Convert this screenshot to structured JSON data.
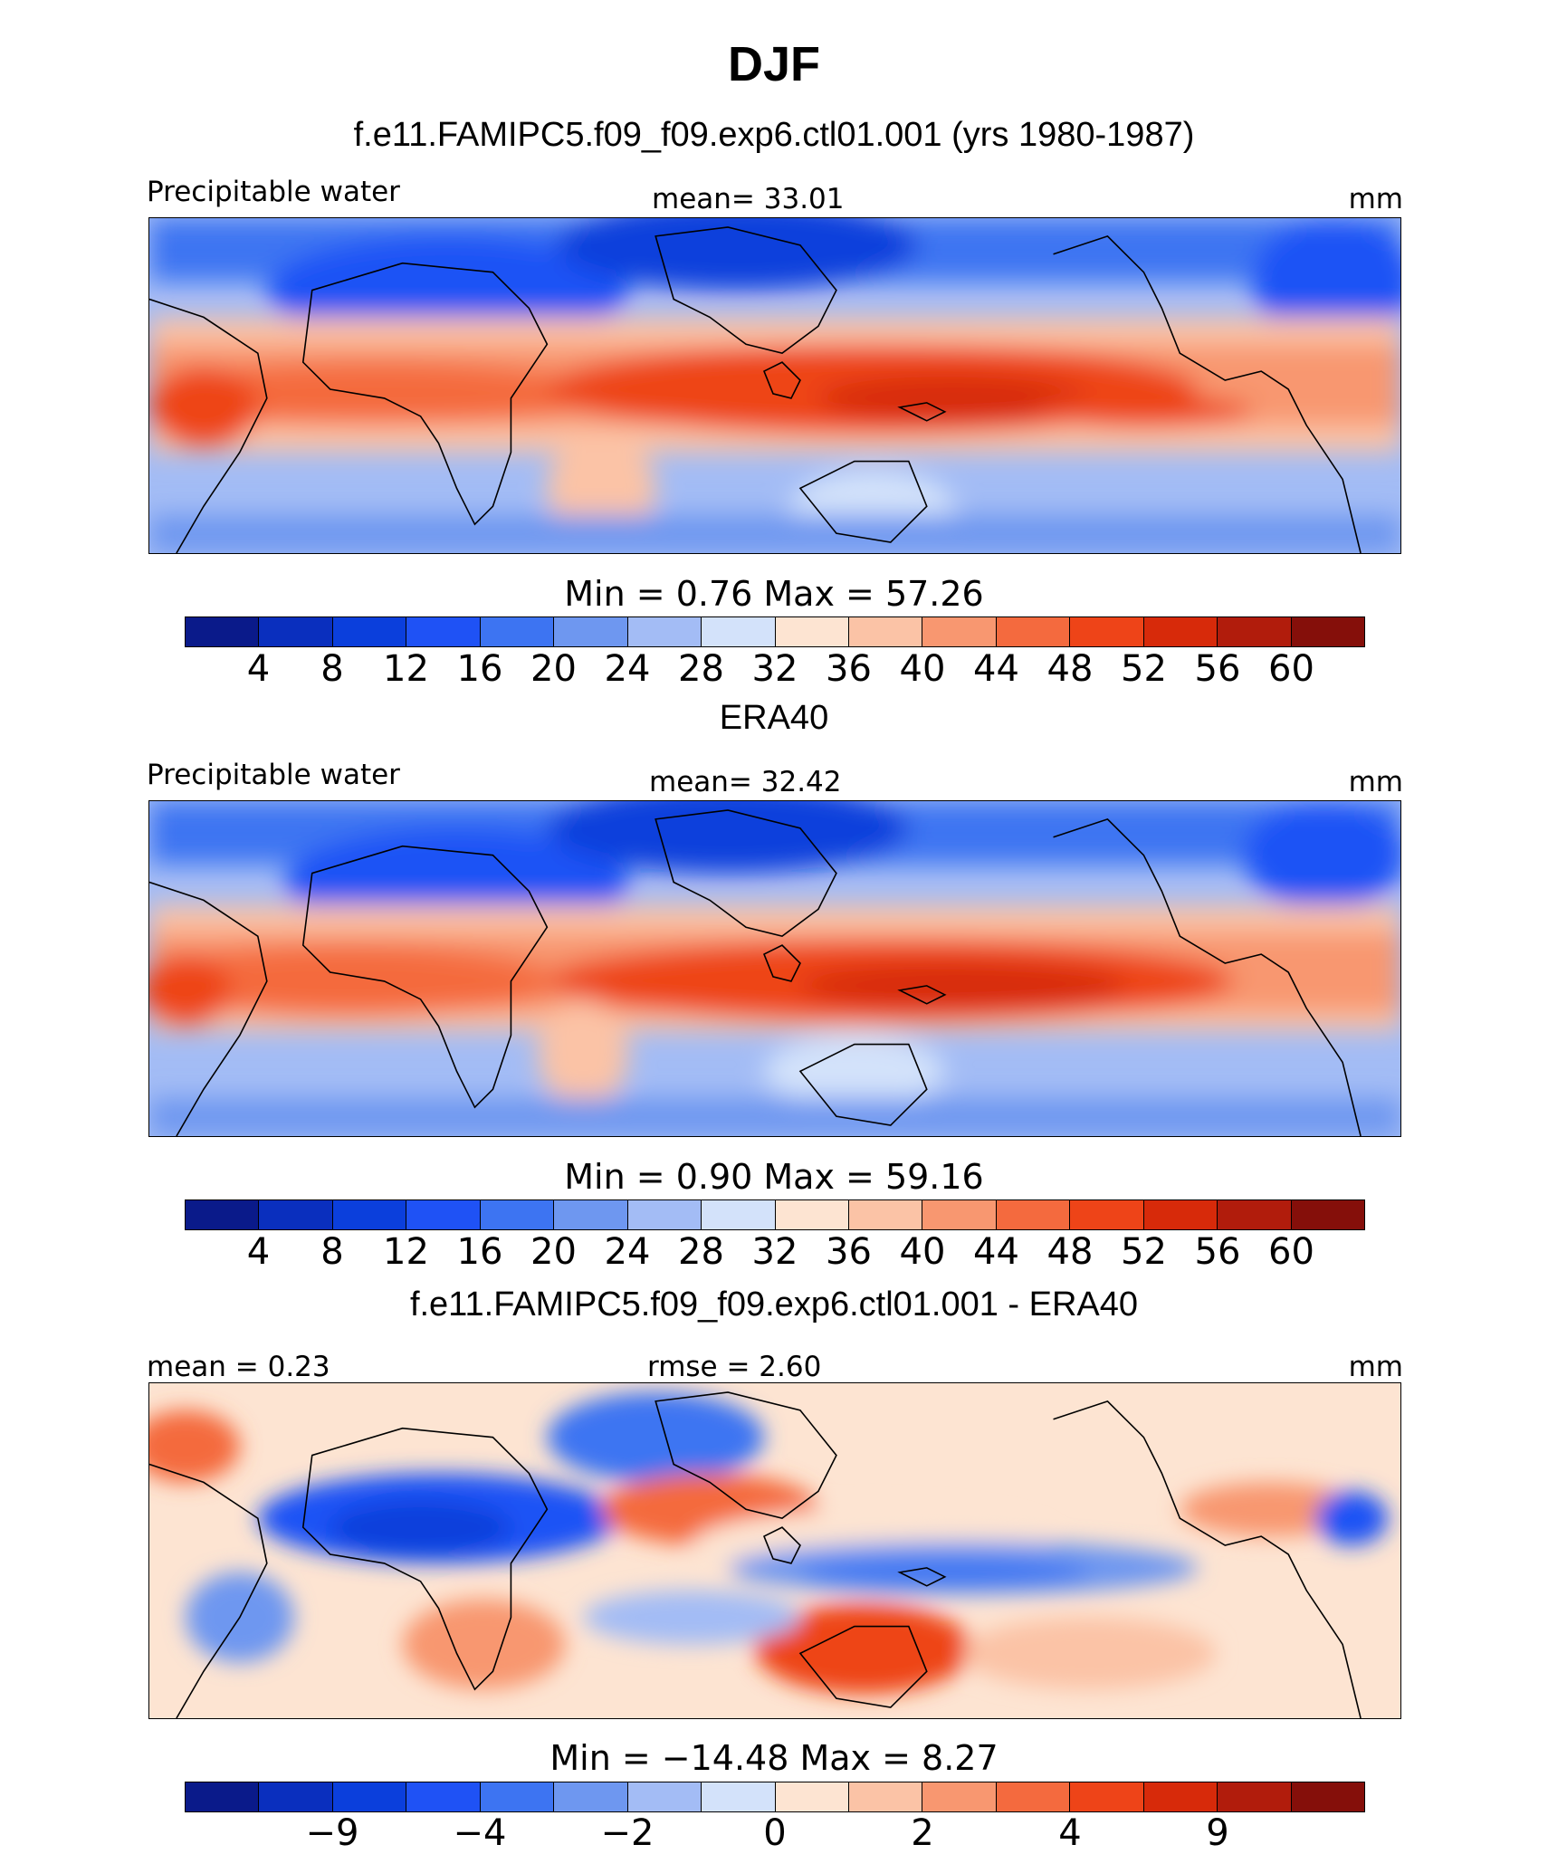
{
  "title": "DJF",
  "palette_abs": [
    "#0a1a8a",
    "#0a2fbe",
    "#0b3fdc",
    "#1f52f5",
    "#3d74f2",
    "#6e97f0",
    "#a3bcf5",
    "#d3e2fa",
    "#fde4d2",
    "#fbc3a6",
    "#f89770",
    "#f46a3e",
    "#ee4418",
    "#d72a0a",
    "#b11c0c",
    "#850f0a"
  ],
  "palette_diff": [
    "#0a1a8a",
    "#0a2fbe",
    "#0b3fdc",
    "#1f52f5",
    "#3d74f2",
    "#6e97f0",
    "#a3bcf5",
    "#d3e2fa",
    "#fde4d2",
    "#fbc3a6",
    "#f89770",
    "#f46a3e",
    "#ee4418",
    "#d72a0a",
    "#b11c0c",
    "#850f0a"
  ],
  "panels": [
    {
      "heading": "f.e11.FAMIPC5.f09_f09.exp6.ctl01.001 (yrs 1980-1987)",
      "left_label": "Precipitable water",
      "center_label": "mean=   33.01",
      "units": "mm",
      "minmax": "Min  =     0.76  Max  =    57.26",
      "ticks": [
        "4",
        "8",
        "12",
        "16",
        "20",
        "24",
        "28",
        "32",
        "36",
        "40",
        "44",
        "48",
        "52",
        "56",
        "60"
      ]
    },
    {
      "heading": "ERA40",
      "left_label": "Precipitable water",
      "center_label": "mean=   32.42",
      "units": "mm",
      "minmax": "Min  =     0.90  Max  =    59.16",
      "ticks": [
        "4",
        "8",
        "12",
        "16",
        "20",
        "24",
        "28",
        "32",
        "36",
        "40",
        "44",
        "48",
        "52",
        "56",
        "60"
      ]
    },
    {
      "heading": "f.e11.FAMIPC5.f09_f09.exp6.ctl01.001 - ERA40",
      "left_label": "mean =    0.23",
      "center_label": "rmse =    2.60",
      "units": "mm",
      "minmax": "Min  = −14.48  Max  =     8.27",
      "ticks": [
        "−9",
        "−4",
        "−2",
        "0",
        "2",
        "4",
        "9"
      ]
    }
  ]
}
